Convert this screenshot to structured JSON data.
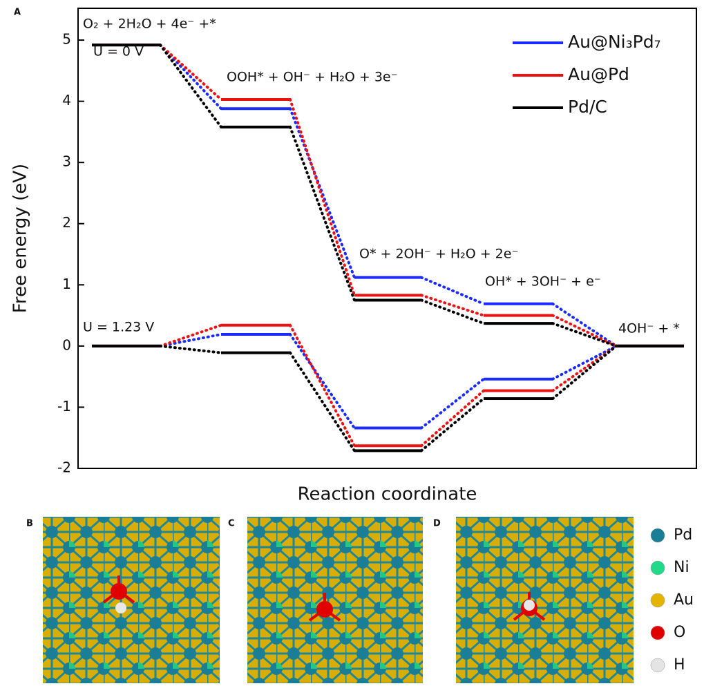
{
  "chart_data": {
    "type": "energy-levels",
    "x_label": "Reaction coordinate",
    "y_label": "Free energy (eV)",
    "ylim": [
      -2,
      5.52
    ],
    "yticks": [
      -2,
      -1,
      0,
      1,
      2,
      3,
      4,
      5
    ],
    "potentials": [
      "U = 0 V",
      "U = 1.23 V"
    ],
    "annotations": [
      "O₂ + 2H₂O + 4e⁻ +*",
      "OOH* + OH⁻ + H₂O + 3e⁻",
      "O* + 2OH⁻ + H₂O + 2e⁻",
      "OH* + 3OH⁻ + e⁻",
      "4OH⁻ + *"
    ],
    "series": [
      {
        "name": "Au@Ni₃Pd₇",
        "color": "#1a2bff",
        "values_u0": [
          4.92,
          3.88,
          1.12,
          0.69,
          0
        ],
        "values_u1_23": [
          0,
          0.19,
          -1.34,
          -0.54,
          0
        ]
      },
      {
        "name": "Au@Pd",
        "color": "#ee1111",
        "values_u0": [
          4.92,
          4.03,
          0.83,
          0.5,
          0
        ],
        "values_u1_23": [
          0,
          0.34,
          -1.63,
          -0.73,
          0
        ]
      },
      {
        "name": "Pd/C",
        "color": "#000000",
        "values_u0": [
          4.92,
          3.58,
          0.75,
          0.37,
          0
        ],
        "values_u1_23": [
          0,
          -0.11,
          -1.71,
          -0.86,
          0
        ]
      }
    ]
  },
  "panel_labels": [
    "A",
    "B",
    "C",
    "D"
  ],
  "atom_legend": [
    {
      "label": "Pd",
      "color": "#1a7f96"
    },
    {
      "label": "Ni",
      "color": "#22d98a"
    },
    {
      "label": "Au",
      "color": "#e4b400"
    },
    {
      "label": "O",
      "color": "#e00000"
    },
    {
      "label": "H",
      "color": "#e4e4e4"
    }
  ]
}
